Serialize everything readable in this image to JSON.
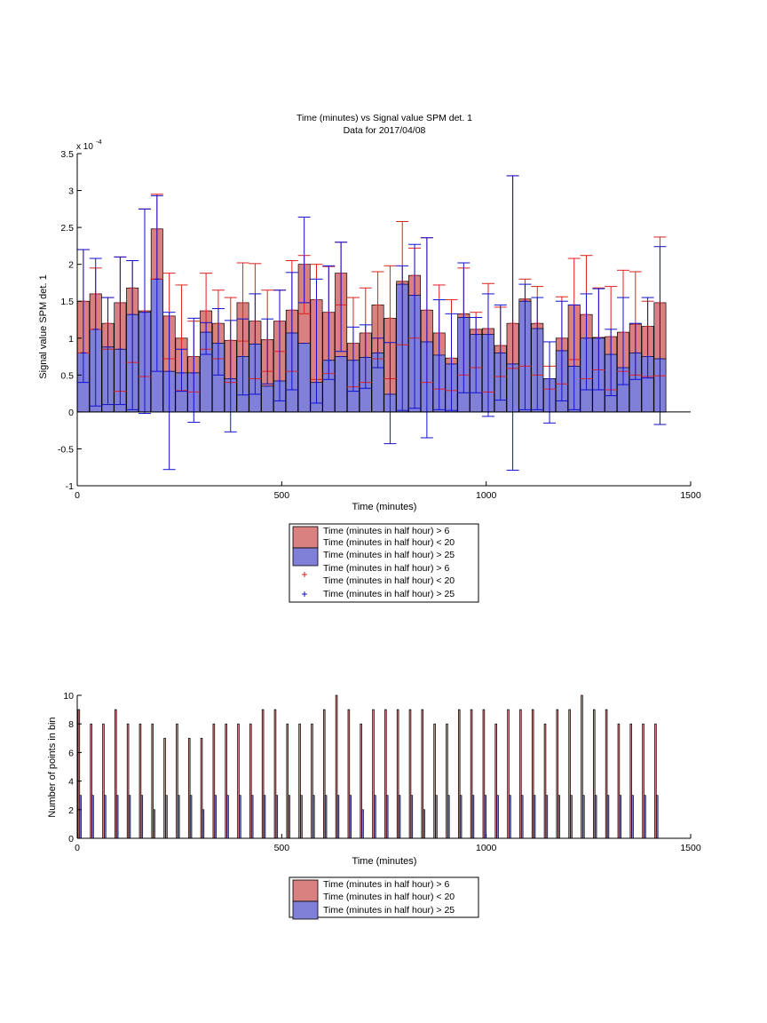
{
  "colors": {
    "above_6_fill": "#d98080",
    "below_20_fill": "#8080d9",
    "above_6_err": "#e02020",
    "below_20_err": "#1010d0",
    "zero_line": "#000000"
  },
  "chart_data": [
    {
      "type": "bar",
      "title": "Time (minutes) vs Signal value SPM det. 1",
      "subtitle": "Data for 2017/04/08",
      "xlabel": "Time (minutes)",
      "ylabel": "Signal value SPM det. 1",
      "exponent_label": "x 10",
      "exponent_power": "-4",
      "xlim": [
        0,
        1500
      ],
      "ylim": [
        -1,
        3.5
      ],
      "xticks": [
        0,
        500,
        1000,
        1500
      ],
      "yticks": [
        -1,
        -0.5,
        0,
        0.5,
        1,
        1.5,
        2,
        2.5,
        3,
        3.5
      ],
      "grid": false,
      "legend_position": "below",
      "legend": [
        "Time (minutes in half hour) > 6",
        "Time (minutes in half hour) < 20",
        "Time (minutes in half hour) > 25",
        "Time (minutes in half hour) > 6",
        "Time (minutes in half hour) < 20",
        "Time (minutes in half hour) > 25"
      ],
      "x": [
        15,
        45,
        75,
        105,
        135,
        165,
        195,
        225,
        255,
        285,
        315,
        345,
        375,
        405,
        435,
        465,
        495,
        525,
        555,
        585,
        615,
        645,
        675,
        705,
        735,
        765,
        795,
        825,
        855,
        885,
        915,
        945,
        975,
        1005,
        1035,
        1065,
        1095,
        1125,
        1155,
        1185,
        1215,
        1245,
        1275,
        1305,
        1335,
        1365,
        1395,
        1425
      ],
      "series": [
        {
          "values": [
            1.5,
            1.6,
            1.2,
            1.48,
            1.68,
            1.37,
            2.48,
            1.3,
            1.0,
            0.75,
            1.37,
            1.2,
            0.97,
            1.48,
            1.23,
            0.98,
            1.23,
            1.38,
            2.0,
            1.52,
            1.35,
            1.88,
            0.93,
            1.07,
            1.45,
            1.27,
            1.77,
            1.85,
            1.38,
            1.07,
            0.73,
            1.33,
            1.12,
            1.13,
            0.9,
            1.2,
            1.53,
            1.2,
            0.45,
            1.0,
            1.45,
            1.32,
            1.01,
            1.02,
            1.08,
            1.19,
            1.16,
            1.48
          ],
          "err_low": [
            0.8,
            1.12,
            0.85,
            0.28,
            0.67,
            0.48,
            1.8,
            0.72,
            0.29,
            0.27,
            0.85,
            0.72,
            0.4,
            0.96,
            0.45,
            0.55,
            0.82,
            0.55,
            1.33,
            0.44,
            0.52,
            1.45,
            0.34,
            0.4,
            0.72,
            0.45,
            0.91,
            1.0,
            0.4,
            0.31,
            0.29,
            0.5,
            0.6,
            0.27,
            0.48,
            0.59,
            0.62,
            0.5,
            0.31,
            0.38,
            0.71,
            0.45,
            0.57,
            0.3,
            0.55,
            0.5,
            0.48,
            0.49
          ],
          "err_high": [
            2.2,
            1.95,
            1.55,
            2.1,
            2.05,
            2.75,
            2.95,
            1.88,
            1.72,
            1.23,
            1.88,
            1.65,
            1.55,
            2.02,
            2.01,
            1.65,
            1.65,
            2.05,
            2.12,
            2.0,
            1.97,
            2.3,
            1.55,
            1.68,
            1.9,
            1.98,
            2.58,
            2.22,
            2.36,
            1.72,
            1.52,
            1.95,
            1.35,
            1.74,
            1.42,
            3.2,
            1.8,
            1.7,
            0.62,
            1.56,
            2.08,
            2.12,
            1.68,
            1.7,
            1.92,
            1.9,
            1.5,
            2.37
          ]
        },
        {
          "values": [
            0.8,
            1.12,
            0.88,
            0.85,
            1.32,
            1.35,
            1.8,
            0.55,
            0.53,
            0.53,
            1.08,
            0.93,
            0.45,
            0.75,
            0.92,
            0.35,
            0.42,
            1.07,
            0.93,
            0.4,
            0.7,
            0.75,
            0.7,
            0.74,
            0.8,
            0.24,
            1.73,
            1.58,
            0.95,
            0.77,
            0.65,
            1.28,
            1.05,
            1.05,
            0.8,
            0.65,
            1.5,
            1.13,
            0.45,
            0.83,
            0.62,
            1.0,
            1.0,
            0.78,
            0.6,
            0.8,
            0.75,
            0.72
          ],
          "err_low": [
            0.4,
            0.08,
            0.1,
            0.1,
            0.03,
            -0.02,
            0.55,
            -0.78,
            0.28,
            -0.14,
            0.78,
            0.5,
            -0.27,
            0.23,
            0.24,
            0.38,
            0.15,
            0.3,
            1.48,
            0.12,
            0.44,
            0.82,
            0.28,
            0.32,
            0.6,
            -0.43,
            0.02,
            0.05,
            -0.35,
            0.03,
            0.02,
            0.26,
            0.26,
            -0.06,
            0.16,
            -0.79,
            0.03,
            0.03,
            -0.15,
            0.15,
            0.03,
            0.3,
            0.3,
            0.22,
            0.37,
            0.44,
            0.46,
            -0.17
          ],
          "err_high": [
            2.2,
            2.08,
            1.55,
            2.1,
            2.05,
            2.75,
            2.93,
            1.35,
            0.85,
            1.27,
            1.21,
            1.4,
            1.24,
            1.26,
            1.6,
            1.26,
            1.65,
            1.89,
            2.64,
            1.8,
            1.98,
            2.3,
            1.15,
            1.18,
            1.0,
            0.94,
            1.98,
            2.27,
            2.36,
            1.52,
            1.33,
            2.02,
            1.28,
            1.6,
            1.45,
            3.2,
            1.73,
            1.55,
            0.95,
            1.5,
            1.45,
            1.6,
            1.67,
            1.12,
            1.55,
            1.2,
            1.55,
            2.24
          ]
        }
      ]
    },
    {
      "type": "bar",
      "title": "",
      "xlabel": "Time (minutes)",
      "ylabel": "Number of points in bin",
      "xlim": [
        0,
        1500
      ],
      "ylim": [
        0,
        10
      ],
      "xticks": [
        0,
        500,
        1000,
        1500
      ],
      "yticks": [
        0,
        2,
        4,
        6,
        8,
        10
      ],
      "grid": false,
      "legend_position": "below",
      "legend": [
        "Time (minutes in half hour) > 6",
        "Time (minutes in half hour) < 20",
        "Time (minutes in half hour) > 25"
      ],
      "x": [
        15,
        45,
        75,
        105,
        135,
        165,
        195,
        225,
        255,
        285,
        315,
        345,
        375,
        405,
        435,
        465,
        495,
        525,
        555,
        585,
        615,
        645,
        675,
        705,
        735,
        765,
        795,
        825,
        855,
        885,
        915,
        945,
        975,
        1005,
        1035,
        1065,
        1095,
        1125,
        1155,
        1185,
        1215,
        1245,
        1275,
        1305,
        1335,
        1365,
        1395,
        1425
      ],
      "series": [
        {
          "values": [
            9,
            8,
            8,
            9,
            8,
            8,
            8,
            7,
            8,
            7,
            7,
            8,
            8,
            8,
            8,
            9,
            9,
            8,
            8,
            8,
            9,
            10,
            9,
            8,
            9,
            9,
            9,
            9,
            9,
            8,
            8,
            9,
            9,
            9,
            8,
            9,
            9,
            9,
            8,
            9,
            9,
            10,
            9,
            9,
            8,
            8,
            8,
            8
          ]
        },
        {
          "values": [
            3,
            3,
            3,
            3,
            3,
            3,
            2,
            3,
            3,
            3,
            2,
            3,
            3,
            3,
            3,
            3,
            3,
            3,
            3,
            3,
            3,
            3,
            3,
            2,
            3,
            3,
            3,
            3,
            2,
            3,
            3,
            3,
            3,
            3,
            3,
            3,
            3,
            3,
            3,
            3,
            3,
            3,
            3,
            3,
            3,
            3,
            3,
            3
          ]
        }
      ]
    }
  ]
}
